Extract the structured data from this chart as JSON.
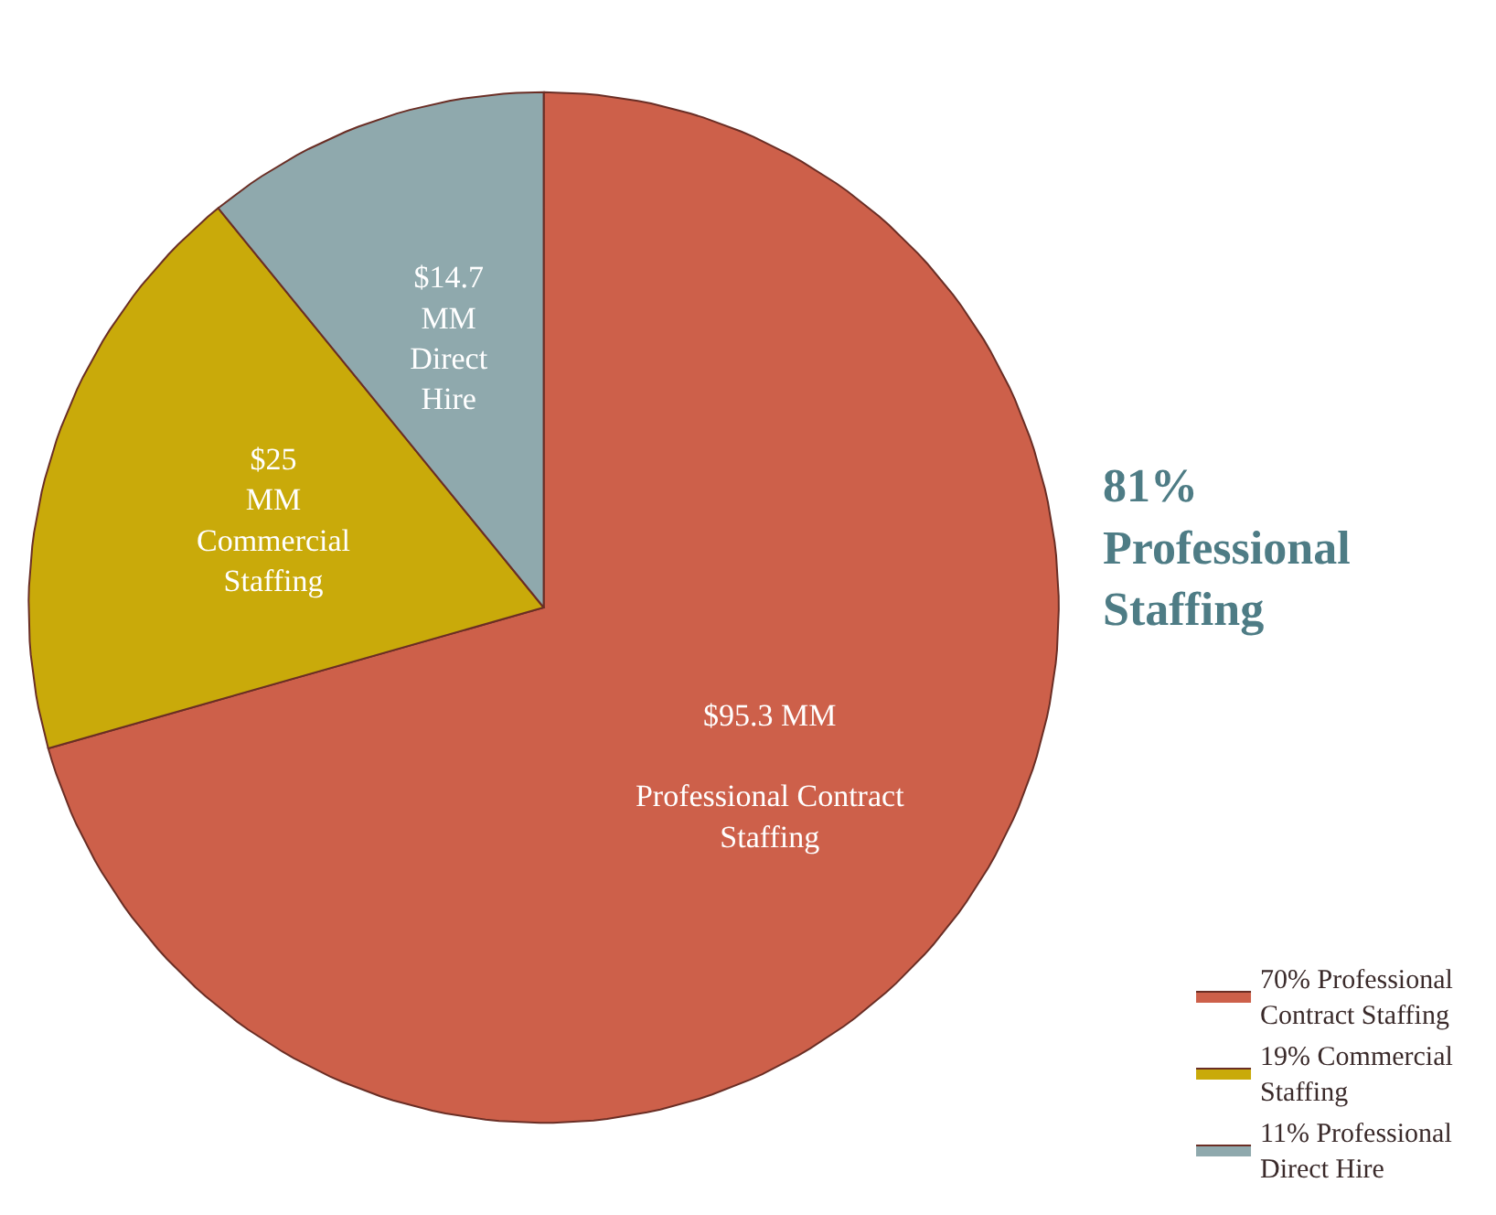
{
  "chart_data": {
    "type": "pie",
    "categories": [
      "70% Professional\nContract Staffing",
      "19% Commercial\nStaffing",
      "11% Professional\nDirect Hire"
    ],
    "values": [
      95.3,
      25,
      14.7
    ],
    "value_labels": [
      "$95.3 MM\n\nProfessional Contract\nStaffing",
      "$25\nMM\nCommercial\nStaffing",
      "$14.7\nMM\nDirect\nHire"
    ],
    "colors": [
      "#cd604a",
      "#c9aa0a",
      "#8fa9ad"
    ],
    "annotations": [
      "81%\nProfessional\nStaffing"
    ],
    "legend": "bottom right"
  }
}
